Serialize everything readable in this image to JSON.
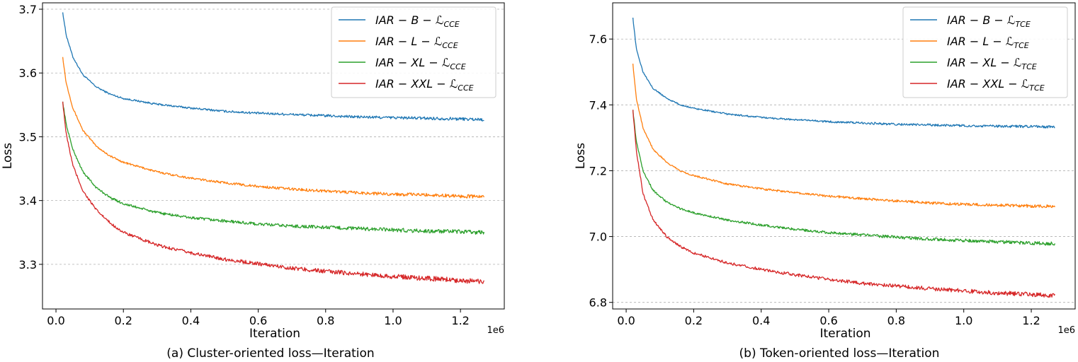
{
  "chart_data": [
    {
      "type": "line",
      "caption": "(a) Cluster-oriented loss—Iteration",
      "xlabel": "Iteration",
      "ylabel": "Loss",
      "x_exponent_label": "1e6",
      "xlim": [
        -0.04,
        1.33
      ],
      "ylim": [
        3.23,
        3.71
      ],
      "xticks": [
        0.0,
        0.2,
        0.4,
        0.6,
        0.8,
        1.0,
        1.2
      ],
      "xtick_labels": [
        "0.0",
        "0.2",
        "0.4",
        "0.6",
        "0.8",
        "1.0",
        "1.2"
      ],
      "yticks": [
        3.3,
        3.4,
        3.5,
        3.6,
        3.7
      ],
      "ytick_labels": [
        "3.3",
        "3.4",
        "3.5",
        "3.6",
        "3.7"
      ],
      "grid": "horizontal-dashed",
      "legend_position": "top-right",
      "legend_subscript": "CCE",
      "series": [
        {
          "name": "IAR-B",
          "model": "B",
          "color": "#1f77b4",
          "noise": 0.0018,
          "x": [
            0.02,
            0.03,
            0.05,
            0.08,
            0.12,
            0.16,
            0.2,
            0.3,
            0.4,
            0.5,
            0.6,
            0.7,
            0.8,
            0.9,
            1.0,
            1.1,
            1.2,
            1.27
          ],
          "values": [
            3.695,
            3.66,
            3.625,
            3.597,
            3.578,
            3.567,
            3.56,
            3.551,
            3.545,
            3.54,
            3.537,
            3.535,
            3.533,
            3.531,
            3.53,
            3.529,
            3.528,
            3.527
          ]
        },
        {
          "name": "IAR-L",
          "model": "L",
          "color": "#ff7f0e",
          "noise": 0.002,
          "x": [
            0.02,
            0.03,
            0.05,
            0.08,
            0.12,
            0.16,
            0.2,
            0.3,
            0.4,
            0.5,
            0.6,
            0.7,
            0.8,
            0.9,
            1.0,
            1.1,
            1.2,
            1.27
          ],
          "values": [
            3.625,
            3.585,
            3.545,
            3.51,
            3.485,
            3.47,
            3.46,
            3.445,
            3.435,
            3.428,
            3.422,
            3.418,
            3.415,
            3.412,
            3.41,
            3.409,
            3.407,
            3.406
          ]
        },
        {
          "name": "IAR-XL",
          "model": "XL",
          "color": "#2ca02c",
          "noise": 0.0025,
          "x": [
            0.02,
            0.03,
            0.05,
            0.08,
            0.12,
            0.16,
            0.2,
            0.3,
            0.4,
            0.5,
            0.6,
            0.7,
            0.8,
            0.9,
            1.0,
            1.1,
            1.2,
            1.27
          ],
          "values": [
            3.555,
            3.52,
            3.48,
            3.445,
            3.42,
            3.405,
            3.395,
            3.381,
            3.373,
            3.368,
            3.363,
            3.36,
            3.358,
            3.356,
            3.354,
            3.352,
            3.351,
            3.35
          ]
        },
        {
          "name": "IAR-XXL",
          "model": "XXL",
          "color": "#d62728",
          "noise": 0.003,
          "x": [
            0.02,
            0.03,
            0.05,
            0.08,
            0.12,
            0.16,
            0.2,
            0.3,
            0.4,
            0.5,
            0.6,
            0.7,
            0.8,
            0.9,
            1.0,
            1.1,
            1.2,
            1.27
          ],
          "values": [
            3.555,
            3.505,
            3.455,
            3.415,
            3.385,
            3.365,
            3.35,
            3.33,
            3.318,
            3.308,
            3.301,
            3.294,
            3.289,
            3.285,
            3.281,
            3.278,
            3.275,
            3.272
          ]
        }
      ]
    },
    {
      "type": "line",
      "caption": "(b) Token-oriented loss—Iteration",
      "xlabel": "Iteration",
      "ylabel": "Loss",
      "x_exponent_label": "1e6",
      "xlim": [
        -0.04,
        1.33
      ],
      "ylim": [
        6.78,
        7.71
      ],
      "xticks": [
        0.0,
        0.2,
        0.4,
        0.6,
        0.8,
        1.0,
        1.2
      ],
      "xtick_labels": [
        "0.0",
        "0.2",
        "0.4",
        "0.6",
        "0.8",
        "1.0",
        "1.2"
      ],
      "yticks": [
        6.8,
        7.0,
        7.2,
        7.4,
        7.6
      ],
      "ytick_labels": [
        "6.8",
        "7.0",
        "7.2",
        "7.4",
        "7.6"
      ],
      "grid": "horizontal-dashed",
      "legend_position": "top-right",
      "legend_subscript": "TCE",
      "series": [
        {
          "name": "IAR-B",
          "model": "B",
          "color": "#1f77b4",
          "noise": 0.003,
          "x": [
            0.02,
            0.03,
            0.05,
            0.08,
            0.12,
            0.16,
            0.2,
            0.3,
            0.4,
            0.5,
            0.6,
            0.7,
            0.8,
            0.9,
            1.0,
            1.1,
            1.2,
            1.27
          ],
          "values": [
            7.665,
            7.57,
            7.5,
            7.45,
            7.42,
            7.4,
            7.39,
            7.372,
            7.362,
            7.355,
            7.349,
            7.345,
            7.341,
            7.339,
            7.337,
            7.335,
            7.334,
            7.333
          ]
        },
        {
          "name": "IAR-L",
          "model": "L",
          "color": "#ff7f0e",
          "noise": 0.0035,
          "x": [
            0.02,
            0.03,
            0.05,
            0.08,
            0.12,
            0.16,
            0.2,
            0.3,
            0.4,
            0.5,
            0.6,
            0.7,
            0.8,
            0.9,
            1.0,
            1.1,
            1.2,
            1.27
          ],
          "values": [
            7.525,
            7.42,
            7.33,
            7.265,
            7.225,
            7.2,
            7.185,
            7.16,
            7.145,
            7.133,
            7.123,
            7.115,
            7.108,
            7.102,
            7.098,
            7.095,
            7.093,
            7.091
          ]
        },
        {
          "name": "IAR-XL",
          "model": "XL",
          "color": "#2ca02c",
          "noise": 0.004,
          "x": [
            0.02,
            0.03,
            0.05,
            0.08,
            0.12,
            0.16,
            0.2,
            0.3,
            0.4,
            0.5,
            0.6,
            0.7,
            0.8,
            0.9,
            1.0,
            1.1,
            1.2,
            1.27
          ],
          "values": [
            7.385,
            7.29,
            7.2,
            7.14,
            7.105,
            7.085,
            7.072,
            7.05,
            7.035,
            7.022,
            7.012,
            7.005,
            6.998,
            6.992,
            6.988,
            6.984,
            6.98,
            6.978
          ]
        },
        {
          "name": "IAR-XXL",
          "model": "XXL",
          "color": "#d62728",
          "noise": 0.005,
          "x": [
            0.02,
            0.03,
            0.05,
            0.08,
            0.12,
            0.16,
            0.2,
            0.3,
            0.4,
            0.5,
            0.6,
            0.7,
            0.8,
            0.9,
            1.0,
            1.1,
            1.2,
            1.27
          ],
          "values": [
            7.385,
            7.26,
            7.13,
            7.05,
            7.0,
            6.97,
            6.95,
            6.92,
            6.9,
            6.884,
            6.87,
            6.858,
            6.85,
            6.842,
            6.835,
            6.829,
            6.824,
            6.82
          ]
        }
      ]
    }
  ]
}
